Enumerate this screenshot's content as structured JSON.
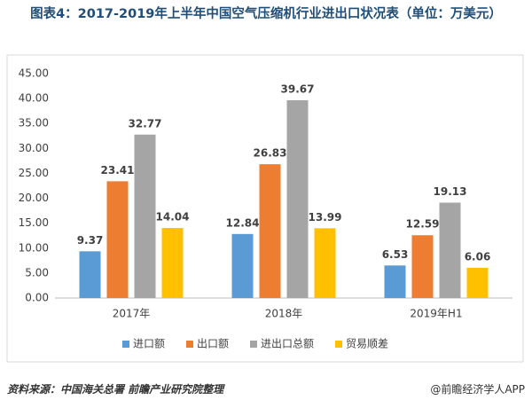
{
  "chart_data": {
    "type": "bar",
    "title": "图表4：2017-2019年上半年中国空气压缩机行业进出口状况表（单位：万美元）",
    "categories": [
      "2017年",
      "2018年",
      "2019年H1"
    ],
    "series": [
      {
        "name": "进口额",
        "color": "#5b9bd5",
        "values": [
          9.37,
          12.84,
          6.53
        ]
      },
      {
        "name": "出口额",
        "color": "#ed7d31",
        "values": [
          23.41,
          26.83,
          12.59
        ]
      },
      {
        "name": "进出口总额",
        "color": "#a5a5a5",
        "values": [
          32.77,
          39.67,
          19.13
        ]
      },
      {
        "name": "贸易顺差",
        "color": "#ffc000",
        "values": [
          14.04,
          13.99,
          6.06
        ]
      }
    ],
    "ylim": [
      0,
      45
    ],
    "yticks": [
      {
        "value": 0,
        "label": "0.00"
      },
      {
        "value": 5,
        "label": "5.00"
      },
      {
        "value": 10,
        "label": "10.00"
      },
      {
        "value": 15,
        "label": "15.00"
      },
      {
        "value": 20,
        "label": "20.00"
      },
      {
        "value": 25,
        "label": "25.00"
      },
      {
        "value": 30,
        "label": "30.00"
      },
      {
        "value": 35,
        "label": "35.00"
      },
      {
        "value": 40,
        "label": "40.00"
      },
      {
        "value": 45,
        "label": "45.00"
      }
    ],
    "grid": false,
    "legend": "bottom",
    "source": "资料来源：中国海关总署 前瞻产业研究院整理",
    "credit": "@前瞻经济学人APP"
  }
}
